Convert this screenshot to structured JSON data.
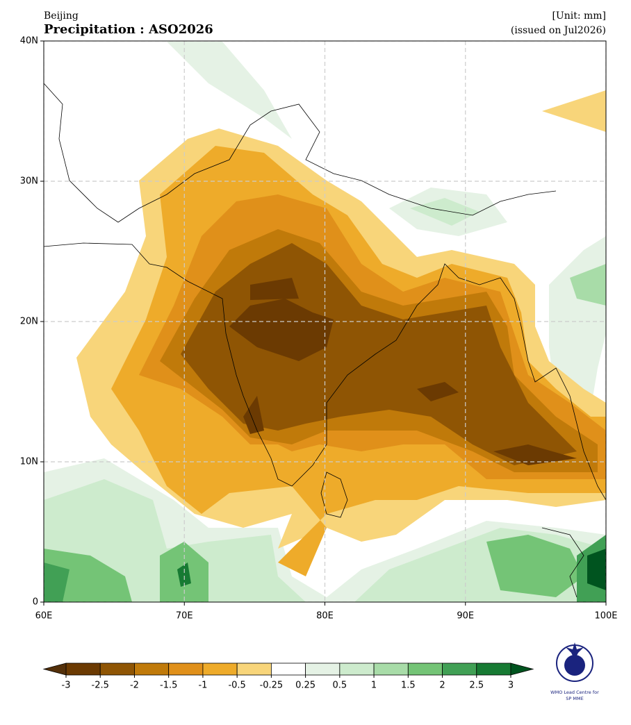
{
  "header": {
    "region": "Beijing",
    "title": "Precipitation : ASO2026",
    "unit": "[Unit: mm]",
    "issued": "(issued on Jul2026)"
  },
  "map": {
    "xlim": [
      60,
      100
    ],
    "ylim": [
      0,
      40
    ],
    "xticks": [
      {
        "value": 60,
        "label": "60E"
      },
      {
        "value": 70,
        "label": "70E"
      },
      {
        "value": 80,
        "label": "80E"
      },
      {
        "value": 90,
        "label": "90E"
      },
      {
        "value": 100,
        "label": "100E"
      }
    ],
    "yticks": [
      0,
      {
        "value": 10,
        "label": "10N"
      },
      {
        "value": 20,
        "label": "20N"
      },
      {
        "value": 30,
        "label": "30N"
      },
      {
        "value": 40,
        "label": "40N"
      }
    ],
    "grid": true
  },
  "colorbar": {
    "levels": [
      -3,
      -2.5,
      -2,
      -1.5,
      -1,
      -0.5,
      -0.25,
      0.25,
      0.5,
      1,
      1.5,
      2,
      2.5,
      3
    ],
    "colors": [
      "#6b3a02",
      "#8f5504",
      "#c07a0a",
      "#e0901a",
      "#eeab2a",
      "#f8d57a",
      "#ffffff",
      "#e5f2e5",
      "#cdebcd",
      "#a8dca8",
      "#74c476",
      "#41a055",
      "#177a33"
    ],
    "extend_colors": [
      "#54300a",
      "#00541f"
    ]
  },
  "logo": {
    "lines": [
      "WMO Lead Centre for",
      "SP MME"
    ]
  }
}
